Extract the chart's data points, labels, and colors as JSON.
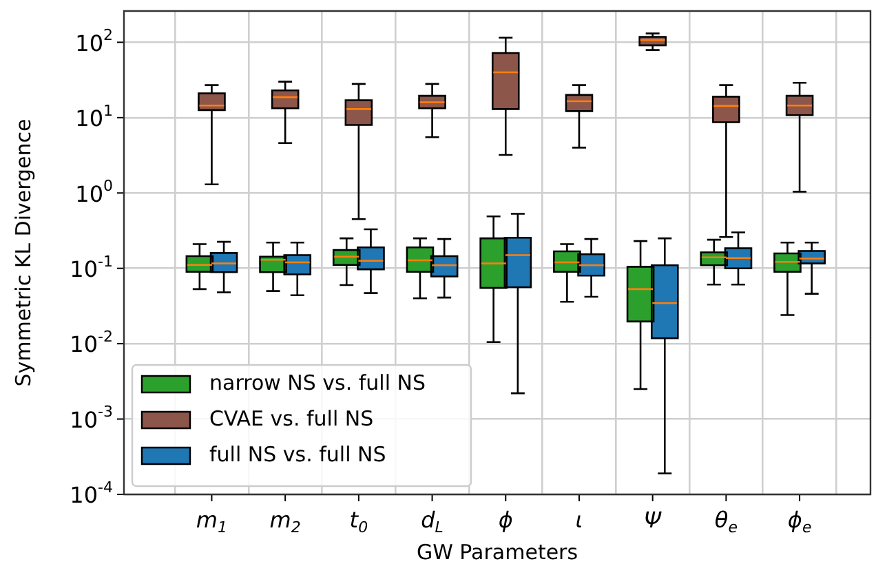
{
  "chart_data": {
    "type": "box",
    "xlabel": "GW Parameters",
    "ylabel": "Symmetric KL Divergence",
    "categories": [
      "m$_{1}$",
      "m$_{2}$",
      "t$_{0}$",
      "d$_{L}$",
      "ϕ",
      "ι",
      "Ψ",
      "θ$_{e}$",
      "ϕ$_{e}$"
    ],
    "series": [
      {
        "name": "narrow NS vs. full NS",
        "color": "#2ca02c",
        "boxes": [
          {
            "low": 0.053,
            "q1": 0.09,
            "median": 0.111,
            "q3": 0.145,
            "high": 0.21
          },
          {
            "low": 0.05,
            "q1": 0.089,
            "median": 0.13,
            "q3": 0.143,
            "high": 0.22
          },
          {
            "low": 0.06,
            "q1": 0.111,
            "median": 0.143,
            "q3": 0.175,
            "high": 0.25
          },
          {
            "low": 0.04,
            "q1": 0.09,
            "median": 0.128,
            "q3": 0.19,
            "high": 0.25
          },
          {
            "low": 0.0105,
            "q1": 0.055,
            "median": 0.116,
            "q3": 0.25,
            "high": 0.49
          },
          {
            "low": 0.036,
            "q1": 0.09,
            "median": 0.12,
            "q3": 0.168,
            "high": 0.21
          },
          {
            "low": 0.0025,
            "q1": 0.0197,
            "median": 0.053,
            "q3": 0.105,
            "high": 0.23
          },
          {
            "low": 0.061,
            "q1": 0.11,
            "median": 0.14,
            "q3": 0.163,
            "high": 0.24
          },
          {
            "low": 0.024,
            "q1": 0.09,
            "median": 0.122,
            "q3": 0.158,
            "high": 0.22
          }
        ]
      },
      {
        "name": "CVAE vs. full NS",
        "color": "#8c564b",
        "boxes": [
          {
            "low": 1.3,
            "q1": 12.6,
            "median": 14.5,
            "q3": 21,
            "high": 27
          },
          {
            "low": 4.6,
            "q1": 13.3,
            "median": 18.7,
            "q3": 23,
            "high": 30
          },
          {
            "low": 0.45,
            "q1": 8,
            "median": 13,
            "q3": 17,
            "high": 28
          },
          {
            "low": 5.5,
            "q1": 13.3,
            "median": 16,
            "q3": 19.5,
            "high": 28
          },
          {
            "low": 3.2,
            "q1": 13,
            "median": 40,
            "q3": 72,
            "high": 115
          },
          {
            "low": 4,
            "q1": 12.2,
            "median": 16.5,
            "q3": 20,
            "high": 27
          },
          {
            "low": 79,
            "q1": 91,
            "median": 107,
            "q3": 118,
            "high": 131
          },
          {
            "low": 0.26,
            "q1": 8.7,
            "median": 14.3,
            "q3": 19,
            "high": 27
          },
          {
            "low": 1.04,
            "q1": 10.8,
            "median": 14.5,
            "q3": 19.5,
            "high": 29
          }
        ]
      },
      {
        "name": "full NS vs. full NS",
        "color": "#1f77b4",
        "boxes": [
          {
            "low": 0.048,
            "q1": 0.089,
            "median": 0.116,
            "q3": 0.16,
            "high": 0.225
          },
          {
            "low": 0.044,
            "q1": 0.083,
            "median": 0.12,
            "q3": 0.15,
            "high": 0.22
          },
          {
            "low": 0.047,
            "q1": 0.097,
            "median": 0.126,
            "q3": 0.19,
            "high": 0.33
          },
          {
            "low": 0.041,
            "q1": 0.078,
            "median": 0.11,
            "q3": 0.145,
            "high": 0.245
          },
          {
            "low": 0.0022,
            "q1": 0.056,
            "median": 0.15,
            "q3": 0.255,
            "high": 0.53
          },
          {
            "low": 0.042,
            "q1": 0.08,
            "median": 0.11,
            "q3": 0.154,
            "high": 0.245
          },
          {
            "low": 0.00019,
            "q1": 0.0118,
            "median": 0.0345,
            "q3": 0.11,
            "high": 0.25
          },
          {
            "low": 0.061,
            "q1": 0.1,
            "median": 0.137,
            "q3": 0.185,
            "high": 0.3
          },
          {
            "low": 0.046,
            "q1": 0.116,
            "median": 0.135,
            "q3": 0.17,
            "high": 0.22
          }
        ]
      }
    ],
    "ylim": [
      0.0001,
      260
    ],
    "yticks": [
      {
        "value": 0.0001,
        "label": "10$^{-4}$"
      },
      {
        "value": 0.001,
        "label": "10$^{-3}$"
      },
      {
        "value": 0.01,
        "label": "10$^{-2}$"
      },
      {
        "value": 0.1,
        "label": "10$^{-1}$"
      },
      {
        "value": 1,
        "label": "10$^{0}$"
      },
      {
        "value": 10,
        "label": "10$^{1}$"
      },
      {
        "value": 100,
        "label": "10$^{2}$"
      }
    ],
    "log": true,
    "grid": true,
    "legend": "bottom left"
  }
}
